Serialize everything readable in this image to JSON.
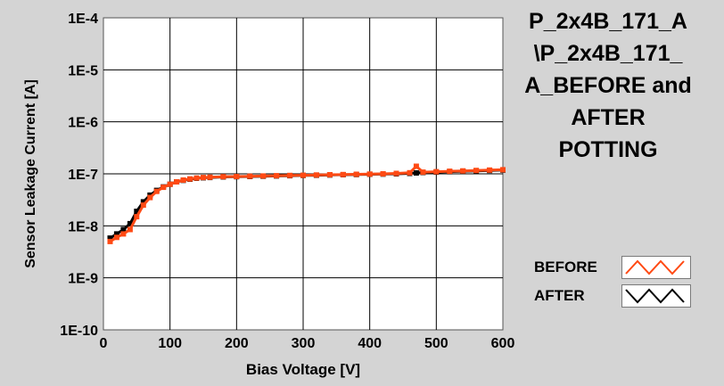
{
  "chart_data": {
    "type": "line",
    "title_lines": [
      "P_2x4B_171_A",
      "\\P_2x4B_171_",
      "A_BEFORE and",
      "AFTER",
      "POTTING"
    ],
    "xlabel": "Bias Voltage [V]",
    "ylabel": "Sensor Leakage Current [A]",
    "xlim": [
      0,
      600
    ],
    "ylim": [
      1e-10,
      0.0001
    ],
    "yscale": "log",
    "grid": true,
    "legend_position": "bottom-right",
    "x_ticks": [
      0,
      100,
      200,
      300,
      400,
      500,
      600
    ],
    "x_tick_labels": [
      "0",
      "100",
      "200",
      "300",
      "400",
      "500",
      "600"
    ],
    "y_ticks": [
      1e-10,
      1e-09,
      1e-08,
      1e-07,
      1e-06,
      1e-05,
      0.0001
    ],
    "y_tick_labels": [
      "1E-10",
      "1E-9",
      "1E-8",
      "1E-7",
      "1E-6",
      "1E-5",
      "1E-4"
    ],
    "series": [
      {
        "name": "BEFORE",
        "color": "#ff4a14",
        "x": [
          10,
          20,
          30,
          40,
          50,
          60,
          70,
          80,
          90,
          100,
          110,
          120,
          130,
          140,
          150,
          160,
          180,
          200,
          220,
          240,
          260,
          280,
          300,
          320,
          340,
          360,
          380,
          400,
          420,
          440,
          460,
          470,
          480,
          500,
          520,
          540,
          560,
          580,
          600
        ],
        "y": [
          5e-09,
          6e-09,
          7e-09,
          8.5e-09,
          1.5e-08,
          2.5e-08,
          3.5e-08,
          4.6e-08,
          5.5e-08,
          6.3e-08,
          7e-08,
          7.6e-08,
          8e-08,
          8.3e-08,
          8.5e-08,
          8.6e-08,
          8.8e-08,
          8.9e-08,
          9e-08,
          9.1e-08,
          9.2e-08,
          9.3e-08,
          9.4e-08,
          9.5e-08,
          9.6e-08,
          9.7e-08,
          9.8e-08,
          9.9e-08,
          1e-07,
          1.02e-07,
          1.05e-07,
          1.4e-07,
          1.08e-07,
          1.1e-07,
          1.12e-07,
          1.14e-07,
          1.16e-07,
          1.18e-07,
          1.2e-07
        ]
      },
      {
        "name": "AFTER",
        "color": "#000000",
        "x": [
          10,
          20,
          30,
          40,
          50,
          60,
          70,
          80,
          90,
          100,
          110,
          120,
          130,
          140,
          150,
          160,
          180,
          200,
          220,
          240,
          260,
          280,
          300,
          320,
          340,
          360,
          380,
          400,
          420,
          440,
          460,
          470,
          480,
          500,
          520,
          540,
          560,
          580,
          600
        ],
        "y": [
          5.8e-09,
          7e-09,
          8.5e-09,
          1.1e-08,
          1.9e-08,
          2.9e-08,
          3.9e-08,
          4.8e-08,
          5.6e-08,
          6.3e-08,
          7e-08,
          7.5e-08,
          7.9e-08,
          8.2e-08,
          8.4e-08,
          8.5e-08,
          8.7e-08,
          8.8e-08,
          8.9e-08,
          9e-08,
          9.1e-08,
          9.2e-08,
          9.3e-08,
          9.4e-08,
          9.5e-08,
          9.6e-08,
          9.7e-08,
          9.8e-08,
          9.9e-08,
          1e-07,
          1.02e-07,
          1.04e-07,
          1.06e-07,
          1.08e-07,
          1.1e-07,
          1.12e-07,
          1.14e-07,
          1.16e-07,
          1.18e-07
        ]
      }
    ]
  },
  "legend": {
    "items": [
      {
        "label": "BEFORE",
        "color": "#ff4a14"
      },
      {
        "label": "AFTER",
        "color": "#000000"
      }
    ]
  }
}
